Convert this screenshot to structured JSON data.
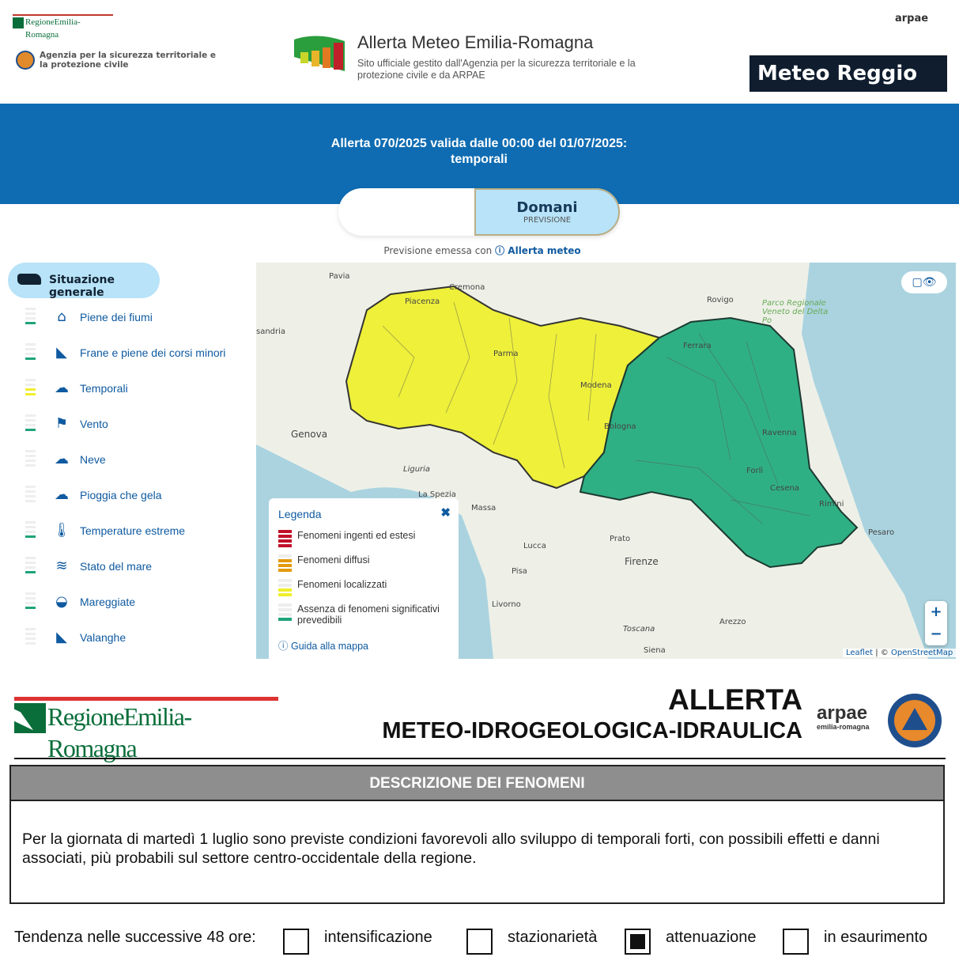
{
  "header": {
    "region_logo": "RegioneEmilia-Romagna",
    "agency": "Agenzia per la sicurezza territoriale e la protezione civile",
    "title": "Allerta Meteo Emilia-Romagna",
    "subtitle": "Sito ufficiale gestito dall'Agenzia per la sicurezza territoriale e la protezione civile e da ARPAE",
    "arpae_logo": "arpae",
    "meteoreggio": "Meteo Reggio"
  },
  "alert": {
    "title": "Allerta 070/2025 valida dalle 00:00 del 01/07/2025: temporali",
    "tab_active": "Domani",
    "tab_active_sub": "PREVISIONE",
    "issued_prefix": "Previsione emessa con",
    "issued_link": "Allerta meteo"
  },
  "sidebar": {
    "active": "Situazione generale",
    "items": [
      {
        "label": "Piene dei fiumi",
        "icon": "house-flood-icon",
        "level": "green"
      },
      {
        "label": "Frane e piene dei corsi minori",
        "icon": "landslide-icon",
        "level": "green"
      },
      {
        "label": "Temporali",
        "icon": "thunderstorm-icon",
        "level": "yellow"
      },
      {
        "label": "Vento",
        "icon": "windsock-icon",
        "level": "green"
      },
      {
        "label": "Neve",
        "icon": "snow-cloud-icon",
        "level": "none"
      },
      {
        "label": "Pioggia che gela",
        "icon": "freezing-rain-icon",
        "level": "none"
      },
      {
        "label": "Temperature estreme",
        "icon": "thermometer-icon",
        "level": "green"
      },
      {
        "label": "Stato del mare",
        "icon": "waves-icon",
        "level": "green"
      },
      {
        "label": "Mareggiate",
        "icon": "storm-surge-icon",
        "level": "green"
      },
      {
        "label": "Valanghe",
        "icon": "avalanche-icon",
        "level": "none"
      }
    ]
  },
  "colors": {
    "red": "#c0102a",
    "orange": "#e39a0c",
    "yellow": "#f0ef2e",
    "green": "#1fa37a",
    "zone_yellow": "#eef03a",
    "zone_green": "#2fb084",
    "blue": "#0f6cb2"
  },
  "map": {
    "places": [
      "Pavia",
      "Cremona",
      "Rovigo",
      "Parco Regionale Veneto del Delta Po",
      "sandria",
      "Piacenza",
      "Parma",
      "Modena",
      "Ferrara",
      "Bologna",
      "Ravenna",
      "Forlì",
      "Cesena",
      "Rimini",
      "Genova",
      "Liguria",
      "La Spezia",
      "Massa",
      "Lucca",
      "Pisa",
      "Prato",
      "Firenze",
      "Livorno",
      "Arezzo",
      "Toscana",
      "Siena",
      "Pesaro"
    ],
    "zoom_in": "+",
    "zoom_out": "−",
    "attribution_leaflet": "Leaflet",
    "attribution_osm": "OpenStreetMap",
    "attribution_sep": " | © "
  },
  "legend": {
    "title": "Legenda",
    "close": "✖",
    "items": [
      {
        "label": "Fenomeni ingenti ed estesi",
        "level": "red"
      },
      {
        "label": "Fenomeni diffusi",
        "level": "orange"
      },
      {
        "label": "Fenomeni localizzati",
        "level": "yellow"
      },
      {
        "label": "Assenza di fenomeni significativi prevedibili",
        "level": "green"
      }
    ],
    "guide": "Guida alla mappa"
  },
  "bulletin": {
    "region_logo": "RegioneEmilia-Romagna",
    "title1": "ALLERTA",
    "title2": "METEO-IDROGEOLOGICA-IDRAULICA",
    "arpae": "arpae",
    "arpae_sub": "emilia-romagna",
    "section": "DESCRIZIONE DEI FENOMENI",
    "text": "Per la giornata di martedì 1 luglio sono previste condizioni favorevoli allo sviluppo di temporali forti, con possibili effetti e danni associati, più probabili sul settore centro-occidentale della regione.",
    "trend_label": "Tendenza nelle successive 48 ore:",
    "trend_options": [
      {
        "label": "intensificazione",
        "checked": false
      },
      {
        "label": "stazionarietà",
        "checked": false
      },
      {
        "label": "attenuazione",
        "checked": true
      },
      {
        "label": "in esaurimento",
        "checked": false
      }
    ]
  }
}
